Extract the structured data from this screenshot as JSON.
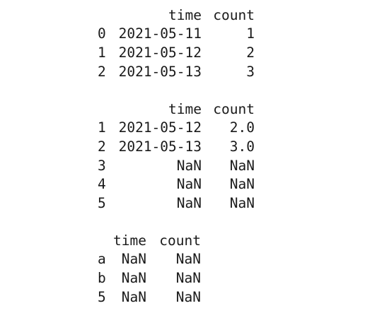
{
  "tables": [
    {
      "columns": [
        "time",
        "count"
      ],
      "rows": [
        {
          "index": "0",
          "time": "2021-05-11",
          "count": "1"
        },
        {
          "index": "1",
          "time": "2021-05-12",
          "count": "2"
        },
        {
          "index": "2",
          "time": "2021-05-13",
          "count": "3"
        }
      ]
    },
    {
      "columns": [
        "time",
        "count"
      ],
      "rows": [
        {
          "index": "1",
          "time": "2021-05-12",
          "count": "2.0"
        },
        {
          "index": "2",
          "time": "2021-05-13",
          "count": "3.0"
        },
        {
          "index": "3",
          "time": "NaN",
          "count": "NaN"
        },
        {
          "index": "4",
          "time": "NaN",
          "count": "NaN"
        },
        {
          "index": "5",
          "time": "NaN",
          "count": "NaN"
        }
      ]
    },
    {
      "columns": [
        "time",
        "count"
      ],
      "rows": [
        {
          "index": "a",
          "time": "NaN",
          "count": "NaN"
        },
        {
          "index": "b",
          "time": "NaN",
          "count": "NaN"
        },
        {
          "index": "5",
          "time": "NaN",
          "count": "NaN"
        }
      ]
    }
  ]
}
